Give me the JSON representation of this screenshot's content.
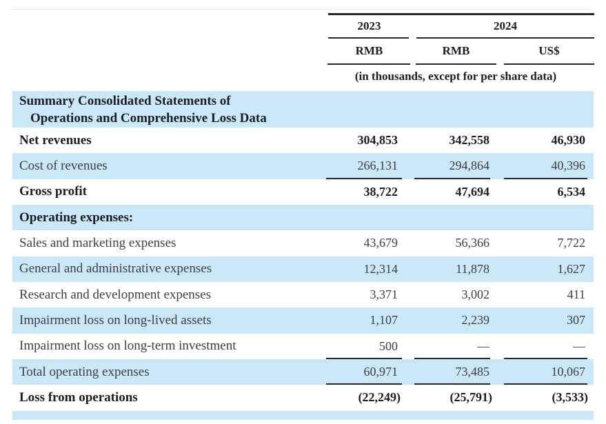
{
  "header": {
    "year_2023": "2023",
    "year_2024": "2024",
    "col1_currency": "RMB",
    "col2_currency": "RMB",
    "col3_currency": "US$",
    "units_note": "(in thousands, except for per share data)"
  },
  "section_header": {
    "line1": "Summary Consolidated Statements of",
    "line2": "Operations and Comprehensive Loss Data"
  },
  "rows": [
    {
      "label": "Net revenues",
      "rmb_2023": "304,853",
      "rmb_2024": "342,558",
      "usd_2024": "46,930"
    },
    {
      "label": "Cost of revenues",
      "rmb_2023": "266,131",
      "rmb_2024": "294,864",
      "usd_2024": "40,396"
    },
    {
      "label": "Gross profit",
      "rmb_2023": "38,722",
      "rmb_2024": "47,694",
      "usd_2024": "6,534"
    },
    {
      "label": "Operating expenses:",
      "rmb_2023": "",
      "rmb_2024": "",
      "usd_2024": ""
    },
    {
      "label": "Sales and marketing expenses",
      "rmb_2023": "43,679",
      "rmb_2024": "56,366",
      "usd_2024": "7,722"
    },
    {
      "label": "General and administrative expenses",
      "rmb_2023": "12,314",
      "rmb_2024": "11,878",
      "usd_2024": "1,627"
    },
    {
      "label": "Research and development expenses",
      "rmb_2023": "3,371",
      "rmb_2024": "3,002",
      "usd_2024": "411"
    },
    {
      "label": "Impairment loss on long-lived assets",
      "rmb_2023": "1,107",
      "rmb_2024": "2,239",
      "usd_2024": "307"
    },
    {
      "label": "Impairment loss on long-term investment",
      "rmb_2023": "500",
      "rmb_2024": "—",
      "usd_2024": "—"
    },
    {
      "label": "Total operating expenses",
      "rmb_2023": "60,971",
      "rmb_2024": "73,485",
      "usd_2024": "10,067"
    },
    {
      "label": "Loss from operations",
      "rmb_2023": "(22,249)",
      "rmb_2024": "(25,791)",
      "usd_2024": "(3,533)"
    }
  ],
  "colors": {
    "stripe_blue": "#cbe8f8",
    "ink": "#3d3d47",
    "ink_bold": "#1c1c26",
    "rule": "#26262e"
  }
}
